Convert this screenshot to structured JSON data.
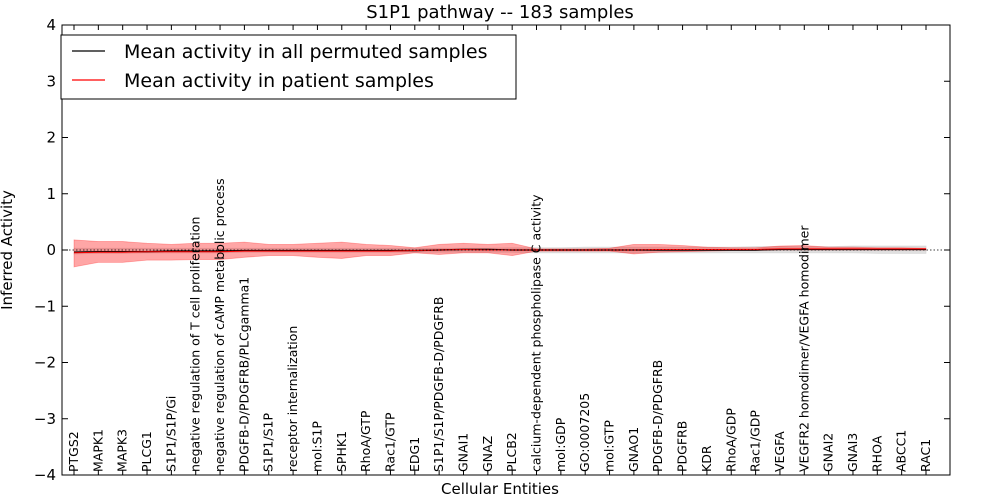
{
  "chart_data": {
    "type": "line",
    "title": "S1P1 pathway -- 183 samples",
    "xlabel": "Cellular Entities",
    "ylabel": "Inferred Activity",
    "ylim": [
      -4,
      4
    ],
    "yticks": [
      -4,
      -3,
      -2,
      -1,
      0,
      1,
      2,
      3,
      4
    ],
    "ytick_labels": [
      "−4",
      "−3",
      "−2",
      "−1",
      "0",
      "1",
      "2",
      "3",
      "4"
    ],
    "legend_position": "top-left",
    "grid": false,
    "categories": [
      "PTGS2",
      "MAPK1",
      "MAPK3",
      "PLCG1",
      "S1P1/S1P/Gi",
      "negative regulation of T cell proliferation",
      "negative regulation of cAMP metabolic process",
      "PDGFB-D/PDGFRB/PLCgamma1",
      "S1P1/S1P",
      "receptor internalization",
      "mol:S1P",
      "SPHK1",
      "RhoA/GTP",
      "Rac1/GTP",
      "EDG1",
      "S1P1/S1P/PDGFB-D/PDGFRB",
      "GNAI1",
      "GNAZ",
      "PLCB2",
      "calcium-dependent phospholipase C activity",
      "mol:GDP",
      "GO:0007205",
      "mol:GTP",
      "GNAO1",
      "PDGFB-D/PDGFRB",
      "PDGFRB",
      "KDR",
      "RhoA/GDP",
      "Rac1/GDP",
      "VEGFA",
      "VEGFR2 homodimer/VEGFA homodimer",
      "GNAI2",
      "GNAI3",
      "RHOA",
      "ABCC1",
      "RAC1"
    ],
    "series": [
      {
        "name": "Mean activity in all permuted samples",
        "color": "#000000",
        "values": [
          -0.04,
          -0.03,
          -0.03,
          -0.03,
          -0.02,
          -0.02,
          -0.02,
          -0.01,
          -0.01,
          -0.01,
          -0.01,
          -0.01,
          -0.01,
          -0.01,
          -0.01,
          0.0,
          0.01,
          0.01,
          0.0,
          0.0,
          0.0,
          0.0,
          0.0,
          0.0,
          0.0,
          0.0,
          0.0,
          0.0,
          0.0,
          0.01,
          0.01,
          0.01,
          0.01,
          0.01,
          0.01,
          0.01
        ],
        "band_lower": [
          -0.07,
          -0.06,
          -0.06,
          -0.05,
          -0.05,
          -0.05,
          -0.05,
          -0.04,
          -0.04,
          -0.04,
          -0.04,
          -0.04,
          -0.04,
          -0.04,
          -0.04,
          -0.04,
          -0.04,
          -0.04,
          -0.04,
          -0.05,
          -0.05,
          -0.05,
          -0.05,
          -0.05,
          -0.05,
          -0.05,
          -0.05,
          -0.05,
          -0.05,
          -0.05,
          -0.05,
          -0.05,
          -0.05,
          -0.06,
          -0.06,
          -0.06
        ],
        "band_upper": [
          0.03,
          0.03,
          0.03,
          0.03,
          0.03,
          0.03,
          0.03,
          0.03,
          0.03,
          0.03,
          0.03,
          0.03,
          0.03,
          0.03,
          0.03,
          0.03,
          0.03,
          0.03,
          0.04,
          0.04,
          0.04,
          0.05,
          0.05,
          0.05,
          0.05,
          0.05,
          0.05,
          0.05,
          0.06,
          0.06,
          0.06,
          0.06,
          0.07,
          0.07,
          0.07,
          0.07
        ],
        "band_color": "#cccccc"
      },
      {
        "name": "Mean activity in patient samples",
        "color": "#ff0000",
        "values": [
          -0.05,
          -0.04,
          -0.04,
          -0.03,
          -0.03,
          -0.03,
          -0.03,
          -0.02,
          -0.02,
          -0.02,
          -0.02,
          -0.02,
          -0.02,
          -0.02,
          -0.01,
          0.0,
          0.01,
          0.0,
          0.0,
          0.0,
          0.0,
          0.0,
          0.0,
          0.0,
          0.01,
          0.01,
          0.01,
          0.01,
          0.01,
          0.02,
          0.02,
          0.02,
          0.02,
          0.02,
          0.02,
          0.02
        ],
        "band_lower": [
          -0.3,
          -0.22,
          -0.22,
          -0.18,
          -0.18,
          -0.17,
          -0.17,
          -0.13,
          -0.1,
          -0.1,
          -0.13,
          -0.15,
          -0.1,
          -0.1,
          -0.05,
          -0.08,
          -0.05,
          -0.05,
          -0.1,
          -0.02,
          -0.02,
          -0.02,
          -0.02,
          -0.07,
          -0.04,
          -0.03,
          -0.02,
          -0.01,
          -0.01,
          0.0,
          0.0,
          0.0,
          0.0,
          0.0,
          0.0,
          0.0
        ],
        "band_upper": [
          0.18,
          0.15,
          0.15,
          0.12,
          0.1,
          0.12,
          0.12,
          0.14,
          0.1,
          0.1,
          0.12,
          0.14,
          0.1,
          0.08,
          0.04,
          0.1,
          0.12,
          0.1,
          0.12,
          0.02,
          0.02,
          0.02,
          0.03,
          0.1,
          0.1,
          0.08,
          0.05,
          0.04,
          0.04,
          0.07,
          0.08,
          0.05,
          0.05,
          0.04,
          0.04,
          0.03
        ],
        "band_color": "#ff0000"
      }
    ]
  }
}
